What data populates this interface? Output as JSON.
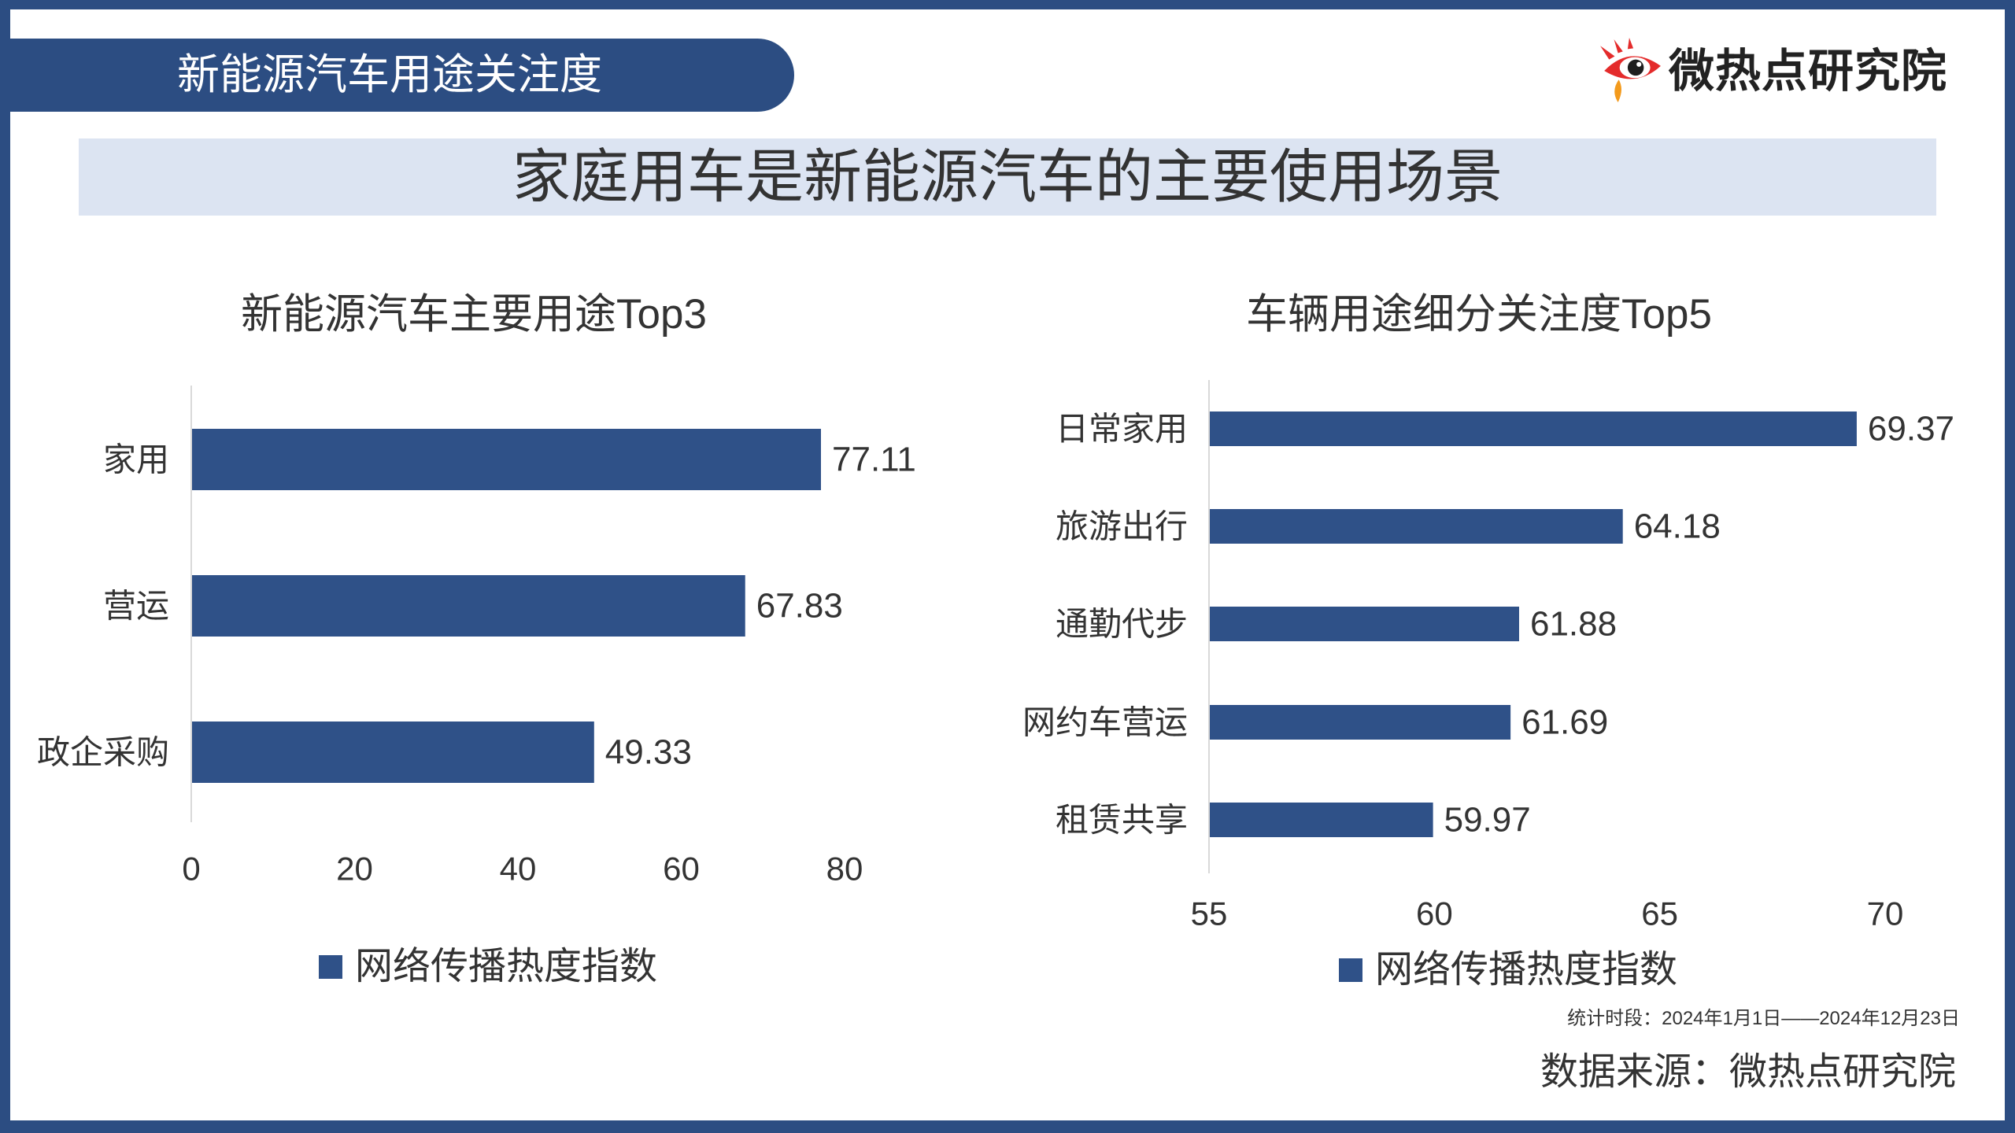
{
  "header": {
    "tab_title": "新能源汽车用途关注度",
    "logo_text": "微热点研究院",
    "logo_icon": "eye-logo-icon"
  },
  "banner": {
    "headline": "家庭用车是新能源汽车的主要使用场景"
  },
  "colors": {
    "brand_blue": "#2c4d82",
    "bar": "#2f5188",
    "banner_bg": "#dce4f2",
    "logo_red": "#e42b2b",
    "logo_orange": "#f39a1c",
    "text": "#333333"
  },
  "chart_data": [
    {
      "type": "bar",
      "orientation": "horizontal",
      "title": "新能源汽车主要用途Top3",
      "categories": [
        "家用",
        "营运",
        "政企采购"
      ],
      "series": [
        {
          "name": "网络传播热度指数",
          "values": [
            77.11,
            67.83,
            49.33
          ]
        }
      ],
      "xlim": [
        0,
        80
      ],
      "xticks": [
        0,
        20,
        40,
        60,
        80
      ],
      "grid": false,
      "legend": "bottom"
    },
    {
      "type": "bar",
      "orientation": "horizontal",
      "title": "车辆用途细分关注度Top5",
      "categories": [
        "日常家用",
        "旅游出行",
        "通勤代步",
        "网约车营运",
        "租赁共享"
      ],
      "series": [
        {
          "name": "网络传播热度指数",
          "values": [
            69.37,
            64.18,
            61.88,
            61.69,
            59.97
          ]
        }
      ],
      "xlim": [
        55,
        70
      ],
      "xticks": [
        55,
        60,
        65,
        70
      ],
      "grid": false,
      "legend": "bottom"
    }
  ],
  "footer": {
    "period": "统计时段：2024年1月1日——2024年12月23日",
    "source": "数据来源：微热点研究院"
  }
}
